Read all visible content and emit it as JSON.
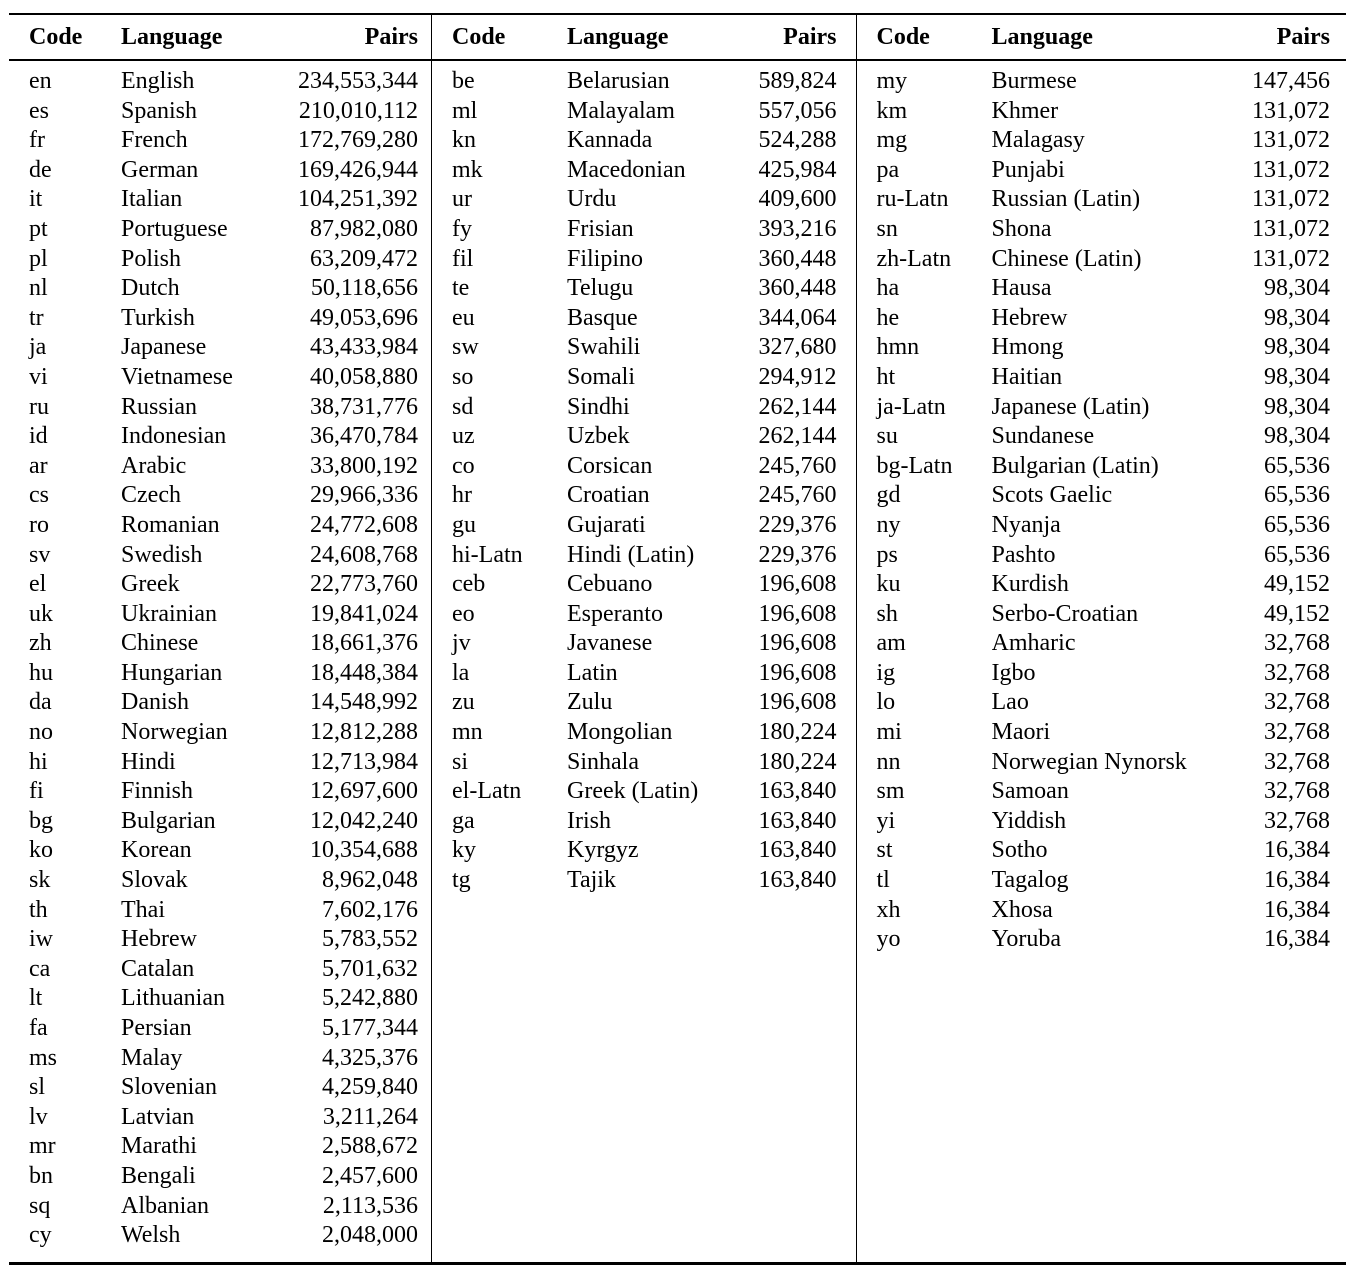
{
  "table": {
    "header": {
      "code": "Code",
      "language": "Language",
      "pairs": "Pairs"
    },
    "sections": [
      {
        "rows": [
          {
            "code": "en",
            "language": "English",
            "pairs": "234,553,344"
          },
          {
            "code": "es",
            "language": "Spanish",
            "pairs": "210,010,112"
          },
          {
            "code": "fr",
            "language": "French",
            "pairs": "172,769,280"
          },
          {
            "code": "de",
            "language": "German",
            "pairs": "169,426,944"
          },
          {
            "code": "it",
            "language": "Italian",
            "pairs": "104,251,392"
          },
          {
            "code": "pt",
            "language": "Portuguese",
            "pairs": "87,982,080"
          },
          {
            "code": "pl",
            "language": "Polish",
            "pairs": "63,209,472"
          },
          {
            "code": "nl",
            "language": "Dutch",
            "pairs": "50,118,656"
          },
          {
            "code": "tr",
            "language": "Turkish",
            "pairs": "49,053,696"
          },
          {
            "code": "ja",
            "language": "Japanese",
            "pairs": "43,433,984"
          },
          {
            "code": "vi",
            "language": "Vietnamese",
            "pairs": "40,058,880"
          },
          {
            "code": "ru",
            "language": "Russian",
            "pairs": "38,731,776"
          },
          {
            "code": "id",
            "language": "Indonesian",
            "pairs": "36,470,784"
          },
          {
            "code": "ar",
            "language": "Arabic",
            "pairs": "33,800,192"
          },
          {
            "code": "cs",
            "language": "Czech",
            "pairs": "29,966,336"
          },
          {
            "code": "ro",
            "language": "Romanian",
            "pairs": "24,772,608"
          },
          {
            "code": "sv",
            "language": "Swedish",
            "pairs": "24,608,768"
          },
          {
            "code": "el",
            "language": "Greek",
            "pairs": "22,773,760"
          },
          {
            "code": "uk",
            "language": "Ukrainian",
            "pairs": "19,841,024"
          },
          {
            "code": "zh",
            "language": "Chinese",
            "pairs": "18,661,376"
          },
          {
            "code": "hu",
            "language": "Hungarian",
            "pairs": "18,448,384"
          },
          {
            "code": "da",
            "language": "Danish",
            "pairs": "14,548,992"
          },
          {
            "code": "no",
            "language": "Norwegian",
            "pairs": "12,812,288"
          },
          {
            "code": "hi",
            "language": "Hindi",
            "pairs": "12,713,984"
          },
          {
            "code": "fi",
            "language": "Finnish",
            "pairs": "12,697,600"
          },
          {
            "code": "bg",
            "language": "Bulgarian",
            "pairs": "12,042,240"
          },
          {
            "code": "ko",
            "language": "Korean",
            "pairs": "10,354,688"
          },
          {
            "code": "sk",
            "language": "Slovak",
            "pairs": "8,962,048"
          },
          {
            "code": "th",
            "language": "Thai",
            "pairs": "7,602,176"
          },
          {
            "code": "iw",
            "language": "Hebrew",
            "pairs": "5,783,552"
          },
          {
            "code": "ca",
            "language": "Catalan",
            "pairs": "5,701,632"
          },
          {
            "code": "lt",
            "language": "Lithuanian",
            "pairs": "5,242,880"
          },
          {
            "code": "fa",
            "language": "Persian",
            "pairs": "5,177,344"
          },
          {
            "code": "ms",
            "language": "Malay",
            "pairs": "4,325,376"
          },
          {
            "code": "sl",
            "language": "Slovenian",
            "pairs": "4,259,840"
          },
          {
            "code": "lv",
            "language": "Latvian",
            "pairs": "3,211,264"
          },
          {
            "code": "mr",
            "language": "Marathi",
            "pairs": "2,588,672"
          },
          {
            "code": "bn",
            "language": "Bengali",
            "pairs": "2,457,600"
          },
          {
            "code": "sq",
            "language": "Albanian",
            "pairs": "2,113,536"
          },
          {
            "code": "cy",
            "language": "Welsh",
            "pairs": "2,048,000"
          }
        ]
      },
      {
        "rows": [
          {
            "code": "be",
            "language": "Belarusian",
            "pairs": "589,824"
          },
          {
            "code": "ml",
            "language": "Malayalam",
            "pairs": "557,056"
          },
          {
            "code": "kn",
            "language": "Kannada",
            "pairs": "524,288"
          },
          {
            "code": "mk",
            "language": "Macedonian",
            "pairs": "425,984"
          },
          {
            "code": "ur",
            "language": "Urdu",
            "pairs": "409,600"
          },
          {
            "code": "fy",
            "language": "Frisian",
            "pairs": "393,216"
          },
          {
            "code": "fil",
            "language": "Filipino",
            "pairs": "360,448"
          },
          {
            "code": "te",
            "language": "Telugu",
            "pairs": "360,448"
          },
          {
            "code": "eu",
            "language": "Basque",
            "pairs": "344,064"
          },
          {
            "code": "sw",
            "language": "Swahili",
            "pairs": "327,680"
          },
          {
            "code": "so",
            "language": "Somali",
            "pairs": "294,912"
          },
          {
            "code": "sd",
            "language": "Sindhi",
            "pairs": "262,144"
          },
          {
            "code": "uz",
            "language": "Uzbek",
            "pairs": "262,144"
          },
          {
            "code": "co",
            "language": "Corsican",
            "pairs": "245,760"
          },
          {
            "code": "hr",
            "language": "Croatian",
            "pairs": "245,760"
          },
          {
            "code": "gu",
            "language": "Gujarati",
            "pairs": "229,376"
          },
          {
            "code": "hi-Latn",
            "language": "Hindi (Latin)",
            "pairs": "229,376"
          },
          {
            "code": "ceb",
            "language": "Cebuano",
            "pairs": "196,608"
          },
          {
            "code": "eo",
            "language": "Esperanto",
            "pairs": "196,608"
          },
          {
            "code": "jv",
            "language": "Javanese",
            "pairs": "196,608"
          },
          {
            "code": "la",
            "language": "Latin",
            "pairs": "196,608"
          },
          {
            "code": "zu",
            "language": "Zulu",
            "pairs": "196,608"
          },
          {
            "code": "mn",
            "language": "Mongolian",
            "pairs": "180,224"
          },
          {
            "code": "si",
            "language": "Sinhala",
            "pairs": "180,224"
          },
          {
            "code": "el-Latn",
            "language": "Greek (Latin)",
            "pairs": "163,840"
          },
          {
            "code": "ga",
            "language": "Irish",
            "pairs": "163,840"
          },
          {
            "code": "ky",
            "language": "Kyrgyz",
            "pairs": "163,840"
          },
          {
            "code": "tg",
            "language": "Tajik",
            "pairs": "163,840"
          }
        ]
      },
      {
        "rows": [
          {
            "code": "my",
            "language": "Burmese",
            "pairs": "147,456"
          },
          {
            "code": "km",
            "language": "Khmer",
            "pairs": "131,072"
          },
          {
            "code": "mg",
            "language": "Malagasy",
            "pairs": "131,072"
          },
          {
            "code": "pa",
            "language": "Punjabi",
            "pairs": "131,072"
          },
          {
            "code": "ru-Latn",
            "language": "Russian (Latin)",
            "pairs": "131,072"
          },
          {
            "code": "sn",
            "language": "Shona",
            "pairs": "131,072"
          },
          {
            "code": "zh-Latn",
            "language": "Chinese (Latin)",
            "pairs": "131,072"
          },
          {
            "code": "ha",
            "language": "Hausa",
            "pairs": "98,304"
          },
          {
            "code": "he",
            "language": "Hebrew",
            "pairs": "98,304"
          },
          {
            "code": "hmn",
            "language": "Hmong",
            "pairs": "98,304"
          },
          {
            "code": "ht",
            "language": "Haitian",
            "pairs": "98,304"
          },
          {
            "code": "ja-Latn",
            "language": "Japanese (Latin)",
            "pairs": "98,304"
          },
          {
            "code": "su",
            "language": "Sundanese",
            "pairs": "98,304"
          },
          {
            "code": "bg-Latn",
            "language": "Bulgarian (Latin)",
            "pairs": "65,536"
          },
          {
            "code": "gd",
            "language": "Scots Gaelic",
            "pairs": "65,536"
          },
          {
            "code": "ny",
            "language": "Nyanja",
            "pairs": "65,536"
          },
          {
            "code": "ps",
            "language": "Pashto",
            "pairs": "65,536"
          },
          {
            "code": "ku",
            "language": "Kurdish",
            "pairs": "49,152"
          },
          {
            "code": "sh",
            "language": "Serbo-Croatian",
            "pairs": "49,152"
          },
          {
            "code": "am",
            "language": "Amharic",
            "pairs": "32,768"
          },
          {
            "code": "ig",
            "language": "Igbo",
            "pairs": "32,768"
          },
          {
            "code": "lo",
            "language": "Lao",
            "pairs": "32,768"
          },
          {
            "code": "mi",
            "language": "Maori",
            "pairs": "32,768"
          },
          {
            "code": "nn",
            "language": "Norwegian Nynorsk",
            "pairs": "32,768"
          },
          {
            "code": "sm",
            "language": "Samoan",
            "pairs": "32,768"
          },
          {
            "code": "yi",
            "language": "Yiddish",
            "pairs": "32,768"
          },
          {
            "code": "st",
            "language": "Sotho",
            "pairs": "16,384"
          },
          {
            "code": "tl",
            "language": "Tagalog",
            "pairs": "16,384"
          },
          {
            "code": "xh",
            "language": "Xhosa",
            "pairs": "16,384"
          },
          {
            "code": "yo",
            "language": "Yoruba",
            "pairs": "16,384"
          }
        ]
      }
    ]
  }
}
